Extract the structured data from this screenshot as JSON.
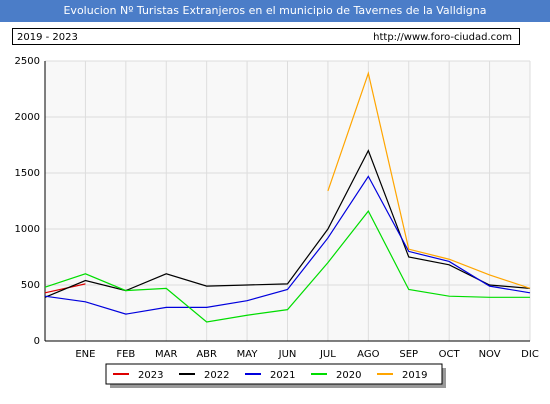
{
  "chart_data": {
    "type": "line",
    "title": "Evolucion Nº Turistas Extranjeros en el municipio de Tavernes de la Valldigna",
    "subtitle": "2019 - 2023",
    "source": "http://www.foro-ciudad.com",
    "categories": [
      null,
      "ENE",
      "FEB",
      "MAR",
      "ABR",
      "MAY",
      "JUN",
      "JUL",
      "AGO",
      "SEP",
      "OCT",
      "NOV",
      "DIC"
    ],
    "series": [
      {
        "name": "2023",
        "color": "#dd0000",
        "values": [
          430,
          510,
          null,
          null,
          null,
          null,
          null,
          null,
          null,
          null,
          null,
          null,
          null
        ]
      },
      {
        "name": "2022",
        "color": "#000000",
        "values": [
          390,
          540,
          450,
          600,
          490,
          500,
          510,
          1000,
          1700,
          750,
          680,
          500,
          470
        ]
      },
      {
        "name": "2021",
        "color": "#0000dd",
        "values": [
          400,
          350,
          240,
          300,
          300,
          360,
          460,
          920,
          1470,
          800,
          710,
          490,
          430
        ]
      },
      {
        "name": "2020",
        "color": "#00dd00",
        "values": [
          480,
          600,
          450,
          470,
          170,
          230,
          280,
          700,
          1160,
          460,
          400,
          390,
          390
        ]
      },
      {
        "name": "2019",
        "color": "#ffa500",
        "values": [
          null,
          null,
          null,
          null,
          null,
          null,
          null,
          1340,
          2390,
          820,
          730,
          590,
          470
        ]
      }
    ],
    "ylim": [
      0,
      2500
    ],
    "yticks": [
      0,
      500,
      1000,
      1500,
      2000,
      2500
    ],
    "grid": true
  }
}
